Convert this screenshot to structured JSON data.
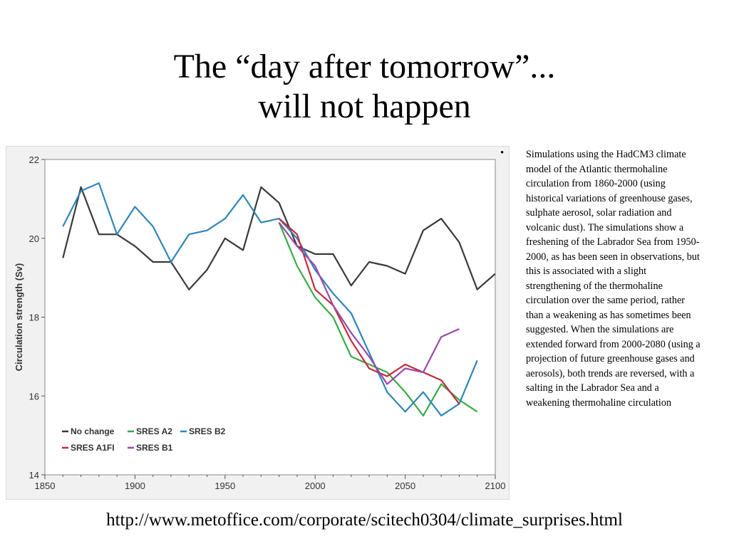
{
  "slide": {
    "title_line1": "The “day after tomorrow”...",
    "title_line2": "will not happen",
    "bullet": "Simulations using the HadCM3 climate model of the Atlantic thermohaline circulation from 1860-2000 (using historical variations of greenhouse gases, sulphate aerosol, solar radiation and volcanic dust). The simulations show a freshening of the Labrador Sea from 1950-2000, as has been seen in observations, but this is associated with a slight strengthening of the thermohaline circulation over the same period, rather than a weakening as has sometimes been suggested. When the simulations are extended forward from 2000-2080 (using a projection of future greenhouse gases and aerosols), both trends are reversed, with a salting in the Labrador Sea and a weakening thermohaline circulation",
    "bullet_symbol": "•",
    "url": "http://www.metoffice.com/corporate/scitech0304/climate_surprises.html"
  },
  "chart_data": {
    "type": "line",
    "xlabel": "",
    "ylabel": "Circulation strength (Sv)",
    "xlim": [
      1850,
      2100
    ],
    "ylim": [
      14,
      22
    ],
    "xticks": [
      1850,
      1900,
      1950,
      2000,
      2050,
      2100
    ],
    "yticks": [
      14,
      16,
      18,
      20,
      22
    ],
    "grid": false,
    "legend_placement": "bottom-left",
    "series": [
      {
        "name": "No change",
        "color": "#3a3a3a",
        "points": [
          [
            1860,
            19.5
          ],
          [
            1870,
            21.3
          ],
          [
            1880,
            20.1
          ],
          [
            1890,
            20.1
          ],
          [
            1900,
            19.8
          ],
          [
            1910,
            19.4
          ],
          [
            1920,
            19.4
          ],
          [
            1930,
            18.7
          ],
          [
            1940,
            19.2
          ],
          [
            1950,
            20.0
          ],
          [
            1960,
            19.7
          ],
          [
            1970,
            21.3
          ],
          [
            1980,
            20.9
          ],
          [
            1990,
            19.8
          ],
          [
            2000,
            19.6
          ],
          [
            2010,
            19.6
          ],
          [
            2020,
            18.8
          ],
          [
            2030,
            19.4
          ],
          [
            2040,
            19.3
          ],
          [
            2050,
            19.1
          ],
          [
            2060,
            20.2
          ],
          [
            2070,
            20.5
          ],
          [
            2080,
            19.9
          ],
          [
            2090,
            18.7
          ],
          [
            2100,
            19.1
          ]
        ]
      },
      {
        "name": "SRES A2",
        "color": "#3aaa48",
        "points": [
          [
            1980,
            20.4
          ],
          [
            1990,
            19.3
          ],
          [
            2000,
            18.5
          ],
          [
            2010,
            18.0
          ],
          [
            2020,
            17.0
          ],
          [
            2030,
            16.8
          ],
          [
            2040,
            16.6
          ],
          [
            2050,
            16.1
          ],
          [
            2060,
            15.5
          ],
          [
            2070,
            16.3
          ],
          [
            2080,
            15.9
          ],
          [
            2090,
            15.6
          ]
        ]
      },
      {
        "name": "SRES B2",
        "color": "#2f86b8",
        "points": [
          [
            1860,
            20.3
          ],
          [
            1870,
            21.2
          ],
          [
            1880,
            21.4
          ],
          [
            1890,
            20.1
          ],
          [
            1900,
            20.8
          ],
          [
            1910,
            20.3
          ],
          [
            1920,
            19.4
          ],
          [
            1930,
            20.1
          ],
          [
            1940,
            20.2
          ],
          [
            1950,
            20.5
          ],
          [
            1960,
            21.1
          ],
          [
            1970,
            20.4
          ],
          [
            1980,
            20.5
          ],
          [
            1990,
            20.0
          ],
          [
            2000,
            19.2
          ],
          [
            2010,
            18.6
          ],
          [
            2020,
            18.1
          ],
          [
            2030,
            17.1
          ],
          [
            2040,
            16.1
          ],
          [
            2050,
            15.6
          ],
          [
            2060,
            16.1
          ],
          [
            2070,
            15.5
          ],
          [
            2080,
            15.8
          ],
          [
            2090,
            16.9
          ]
        ]
      },
      {
        "name": "SRES A1FI",
        "color": "#c8283c",
        "points": [
          [
            1980,
            20.5
          ],
          [
            1990,
            20.1
          ],
          [
            2000,
            18.7
          ],
          [
            2010,
            18.3
          ],
          [
            2020,
            17.4
          ],
          [
            2030,
            16.7
          ],
          [
            2040,
            16.5
          ],
          [
            2050,
            16.8
          ],
          [
            2060,
            16.6
          ],
          [
            2070,
            16.4
          ],
          [
            2080,
            15.8
          ]
        ]
      },
      {
        "name": "SRES B1",
        "color": "#9a4aa6",
        "points": [
          [
            1980,
            20.4
          ],
          [
            1990,
            19.8
          ],
          [
            2000,
            19.3
          ],
          [
            2010,
            18.3
          ],
          [
            2020,
            17.6
          ],
          [
            2030,
            17.0
          ],
          [
            2040,
            16.3
          ],
          [
            2050,
            16.7
          ],
          [
            2060,
            16.6
          ],
          [
            2070,
            17.5
          ],
          [
            2080,
            17.7
          ]
        ]
      }
    ]
  }
}
